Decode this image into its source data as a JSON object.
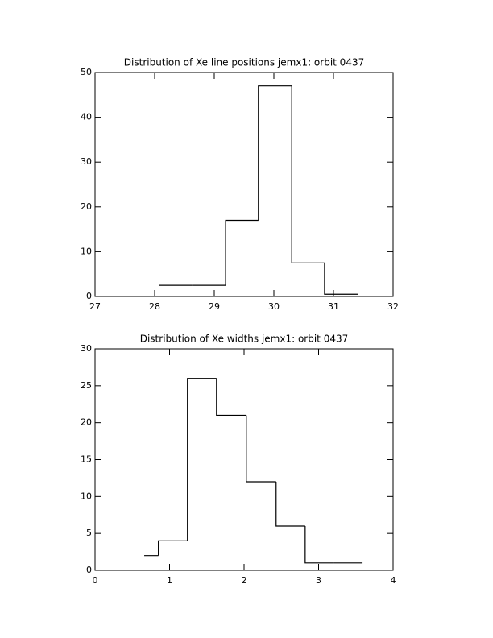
{
  "chart_data": [
    {
      "type": "histogram",
      "title": "Distribution of Xe line positions jemx1: orbit 0437",
      "bins": [
        28.07,
        28.63,
        29.19,
        29.74,
        30.3,
        30.85,
        31.41
      ],
      "values": [
        2.5,
        2.5,
        17,
        47,
        7.5,
        0.5
      ],
      "xlim": [
        27,
        32
      ],
      "xticks": [
        27,
        28,
        29,
        30,
        31,
        32
      ],
      "ylim": [
        0,
        50
      ],
      "yticks": [
        0,
        10,
        20,
        30,
        40,
        50
      ],
      "color": "#000000"
    },
    {
      "type": "histogram",
      "title": "Distribution of Xe widths jemx1: orbit 0437",
      "bins": [
        0.66,
        0.85,
        1.24,
        1.63,
        2.03,
        2.43,
        2.82,
        3.21,
        3.59
      ],
      "values": [
        2,
        4,
        26,
        21,
        12,
        6,
        1,
        1
      ],
      "xlim": [
        0,
        4
      ],
      "xticks": [
        0,
        1,
        2,
        3,
        4
      ],
      "ylim": [
        0,
        30
      ],
      "yticks": [
        0,
        5,
        10,
        15,
        20,
        25,
        30
      ],
      "color": "#000000"
    }
  ]
}
